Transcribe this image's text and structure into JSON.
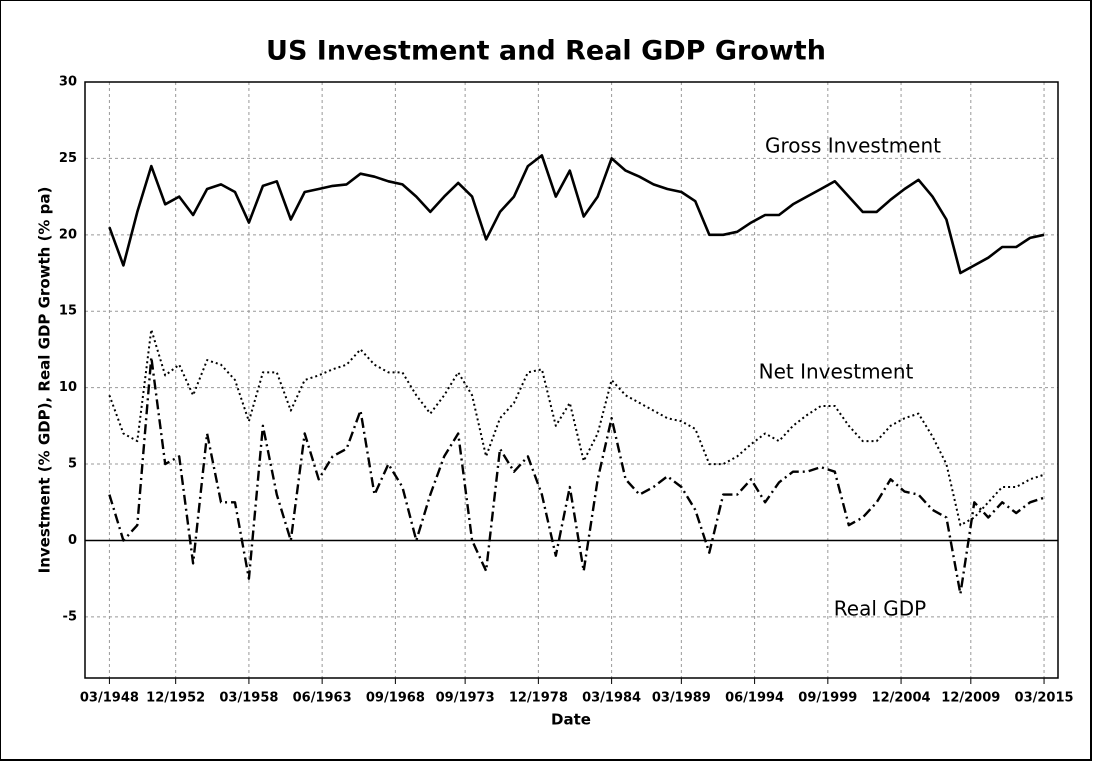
{
  "chart_data": {
    "type": "line",
    "title": "US Investment and Real GDP Growth",
    "x_label": "Date",
    "y_label": "Investment (% GDP), Real GDP Growth (% pa)",
    "x": [
      "03/1948",
      "03/1949",
      "03/1950",
      "03/1951",
      "03/1952",
      "03/1953",
      "03/1954",
      "03/1955",
      "03/1956",
      "03/1957",
      "03/1958",
      "03/1959",
      "03/1960",
      "03/1961",
      "03/1962",
      "03/1963",
      "03/1964",
      "03/1965",
      "03/1966",
      "03/1967",
      "03/1968",
      "03/1969",
      "03/1970",
      "03/1971",
      "03/1972",
      "03/1973",
      "03/1974",
      "03/1975",
      "03/1976",
      "03/1977",
      "03/1978",
      "03/1979",
      "03/1980",
      "03/1981",
      "03/1982",
      "03/1983",
      "03/1984",
      "03/1985",
      "03/1986",
      "03/1987",
      "03/1988",
      "03/1989",
      "03/1990",
      "03/1991",
      "03/1992",
      "03/1993",
      "03/1994",
      "03/1995",
      "03/1996",
      "03/1997",
      "03/1998",
      "03/1999",
      "03/2000",
      "03/2001",
      "03/2002",
      "03/2003",
      "03/2004",
      "03/2005",
      "03/2006",
      "03/2007",
      "03/2008",
      "03/2009",
      "03/2010",
      "03/2011",
      "03/2012",
      "03/2013",
      "03/2014",
      "03/2015"
    ],
    "series": [
      {
        "name": "Gross Investment",
        "color": "#000000",
        "style": "solid",
        "values": [
          20.5,
          18.0,
          21.5,
          24.5,
          22.0,
          22.5,
          21.3,
          23.0,
          23.3,
          22.8,
          20.8,
          23.2,
          23.5,
          21.0,
          22.8,
          23.0,
          23.2,
          23.3,
          24.0,
          23.8,
          23.5,
          23.3,
          22.5,
          21.5,
          22.5,
          23.4,
          22.5,
          19.7,
          21.5,
          22.5,
          24.5,
          25.2,
          22.5,
          24.2,
          21.2,
          22.5,
          25.0,
          24.2,
          23.8,
          23.3,
          23.0,
          22.8,
          22.2,
          20.0,
          20.0,
          20.2,
          20.8,
          21.3,
          21.3,
          22.0,
          22.5,
          23.0,
          23.5,
          22.5,
          21.5,
          21.5,
          22.3,
          23.0,
          23.6,
          22.5,
          21.0,
          17.5,
          18.0,
          18.5,
          19.2,
          19.2,
          19.8,
          20.0
        ]
      },
      {
        "name": "Net Investment",
        "color": "#000000",
        "style": "dotted",
        "values": [
          9.5,
          7.0,
          6.5,
          13.8,
          10.8,
          11.5,
          9.5,
          11.8,
          11.5,
          10.5,
          7.8,
          11.0,
          11.0,
          8.5,
          10.5,
          10.8,
          11.2,
          11.5,
          12.5,
          11.5,
          11.0,
          11.0,
          9.5,
          8.3,
          9.5,
          11.0,
          9.5,
          5.5,
          8.0,
          9.0,
          11.0,
          11.2,
          7.5,
          9.0,
          5.2,
          7.0,
          10.5,
          9.5,
          9.0,
          8.5,
          8.0,
          7.8,
          7.3,
          5.0,
          5.0,
          5.5,
          6.3,
          7.0,
          6.5,
          7.5,
          8.2,
          8.8,
          8.8,
          7.5,
          6.5,
          6.5,
          7.5,
          8.0,
          8.3,
          6.8,
          5.0,
          1.0,
          1.5,
          2.5,
          3.5,
          3.5,
          4.0,
          4.3
        ]
      },
      {
        "name": "Real GDP",
        "color": "#000000",
        "style": "dashdot",
        "values": [
          3.0,
          0.0,
          1.0,
          12.0,
          5.0,
          5.5,
          -1.5,
          7.0,
          2.5,
          2.5,
          -2.5,
          7.5,
          3.0,
          0.0,
          7.0,
          4.0,
          5.5,
          6.0,
          8.5,
          3.0,
          5.0,
          3.5,
          0.0,
          3.0,
          5.5,
          7.0,
          0.0,
          -2.0,
          6.0,
          4.5,
          5.5,
          3.0,
          -1.0,
          3.5,
          -2.0,
          4.0,
          8.0,
          4.0,
          3.0,
          3.5,
          4.2,
          3.5,
          2.0,
          -0.8,
          3.0,
          3.0,
          4.0,
          2.5,
          3.8,
          4.5,
          4.5,
          4.8,
          4.5,
          1.0,
          1.5,
          2.5,
          4.0,
          3.2,
          3.0,
          2.0,
          1.5,
          -3.5,
          2.5,
          1.5,
          2.5,
          1.8,
          2.5,
          2.8
        ]
      }
    ],
    "xlim": [
      "06/1946",
      "03/2016"
    ],
    "xticks": [
      "03/1948",
      "12/1952",
      "03/1958",
      "06/1963",
      "09/1968",
      "09/1973",
      "12/1978",
      "03/1984",
      "03/1989",
      "06/1994",
      "09/1999",
      "12/2004",
      "12/2009",
      "03/2015"
    ],
    "ylim": [
      -9,
      30
    ],
    "yticks": [
      -5,
      0,
      5,
      10,
      15,
      20,
      25,
      30
    ],
    "grid": true,
    "zero_line": true
  }
}
